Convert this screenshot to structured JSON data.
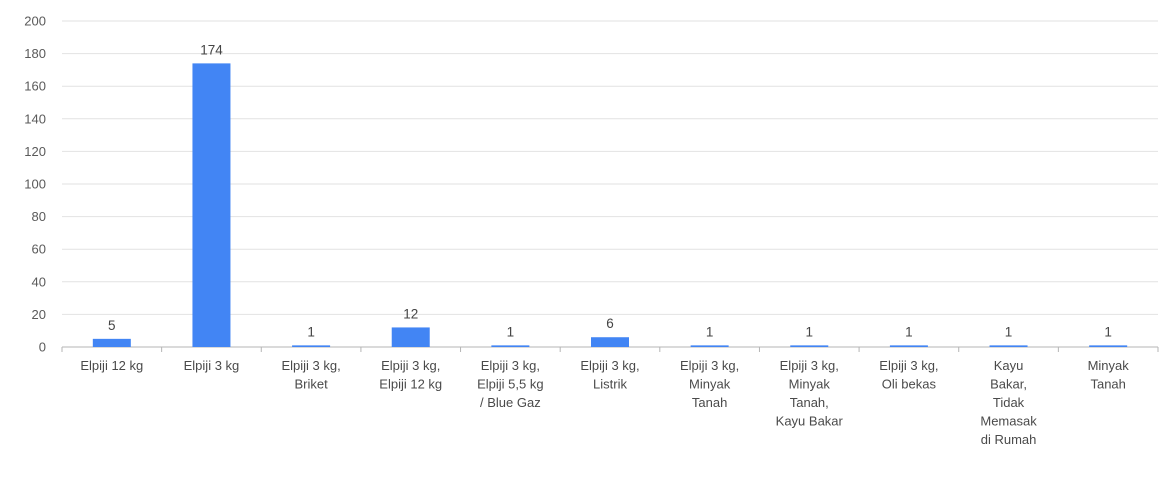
{
  "chart_data": {
    "type": "bar",
    "categories": [
      "Elpiji 12 kg",
      "Elpiji 3 kg",
      "Elpiji 3 kg, Briket",
      "Elpiji 3 kg, Elpiji 12 kg",
      "Elpiji 3 kg, Elpiji 5,5 kg / Blue Gaz",
      "Elpiji 3 kg, Listrik",
      "Elpiji 3 kg, Minyak Tanah",
      "Elpiji 3 kg, Minyak Tanah, Kayu Bakar",
      "Elpiji 3 kg, Oli bekas",
      "Kayu Bakar, Tidak Memasak di Rumah",
      "Minyak Tanah"
    ],
    "category_label_lines": [
      [
        "Elpiji 12 kg"
      ],
      [
        "Elpiji 3 kg"
      ],
      [
        "Elpiji 3 kg,",
        "Briket"
      ],
      [
        "Elpiji 3 kg,",
        "Elpiji 12 kg"
      ],
      [
        "Elpiji 3 kg,",
        "Elpiji 5,5 kg",
        "/ Blue Gaz"
      ],
      [
        "Elpiji 3 kg,",
        "Listrik"
      ],
      [
        "Elpiji 3 kg,",
        "Minyak",
        "Tanah"
      ],
      [
        "Elpiji 3 kg,",
        "Minyak",
        "Tanah,",
        "Kayu Bakar"
      ],
      [
        "Elpiji 3 kg,",
        "Oli bekas"
      ],
      [
        "Kayu",
        "Bakar,",
        "Tidak",
        "Memasak",
        "di Rumah"
      ],
      [
        "Minyak",
        "Tanah"
      ]
    ],
    "values": [
      5,
      174,
      1,
      12,
      1,
      6,
      1,
      1,
      1,
      1,
      1
    ],
    "y_ticks": [
      0,
      20,
      40,
      60,
      80,
      100,
      120,
      140,
      160,
      180,
      200
    ],
    "ylim": [
      0,
      200
    ],
    "title": "",
    "xlabel": "",
    "ylabel": "",
    "grid": true,
    "legend": "none",
    "bar_color": "#4285f4",
    "grid_color": "#e2e2e2",
    "axis_color": "#b5b5b5"
  }
}
